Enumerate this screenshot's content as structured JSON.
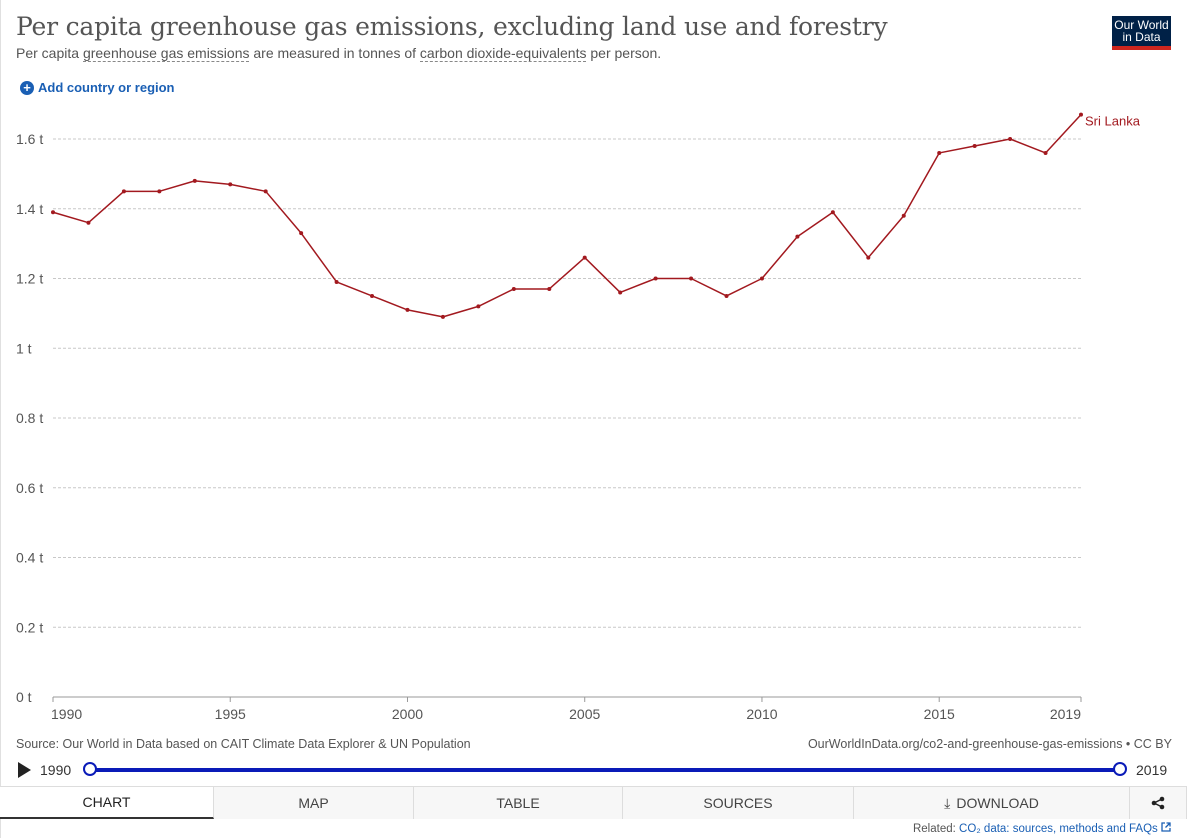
{
  "header": {
    "title": "Per capita greenhouse gas emissions, excluding land use and forestry",
    "subtitle_pre": "Per capita ",
    "subtitle_link1": "greenhouse gas emissions",
    "subtitle_mid": " are measured in tonnes of ",
    "subtitle_link2": "carbon dioxide-equivalents",
    "subtitle_post": " per person.",
    "logo_line1": "Our World",
    "logo_line2": "in Data"
  },
  "controls": {
    "add_country_label": "Add country or region"
  },
  "footer": {
    "source": "Source: Our World in Data based on CAIT Climate Data Explorer & UN Population",
    "url": "OurWorldInData.org/co2-and-greenhouse-gas-emissions • CC BY",
    "related_prefix": "Related: ",
    "related_link": "CO₂ data: sources, methods and FAQs"
  },
  "timeline": {
    "start_year": "1990",
    "end_year": "2019"
  },
  "tabs": [
    {
      "label": "Chart"
    },
    {
      "label": "Map"
    },
    {
      "label": "Table"
    },
    {
      "label": "Sources"
    },
    {
      "label": "Download"
    }
  ],
  "colors": {
    "series": "#a2191f",
    "grid": "#c8c8c8",
    "accent": "#0a1bb8"
  },
  "chart_data": {
    "type": "line",
    "title": "Per capita greenhouse gas emissions, excluding land use and forestry",
    "xlabel": "",
    "ylabel": "",
    "xlim": [
      1990,
      2019
    ],
    "ylim": [
      0,
      1.6
    ],
    "y_ticks": [
      0,
      0.2,
      0.4,
      0.6,
      0.8,
      1,
      1.2,
      1.4,
      1.6
    ],
    "y_tick_labels": [
      "0 t",
      "0.2 t",
      "0.4 t",
      "0.6 t",
      "0.8 t",
      "1 t",
      "1.2 t",
      "1.4 t",
      "1.6 t"
    ],
    "x_ticks": [
      1990,
      1995,
      2000,
      2005,
      2010,
      2015,
      2019
    ],
    "x_tick_labels": [
      "1990",
      "1995",
      "2000",
      "2005",
      "2010",
      "2015",
      "2019"
    ],
    "grid": "horizontal dashed",
    "legend": "end-of-line label",
    "x": [
      1990,
      1991,
      1992,
      1993,
      1994,
      1995,
      1996,
      1997,
      1998,
      1999,
      2000,
      2001,
      2002,
      2003,
      2004,
      2005,
      2006,
      2007,
      2008,
      2009,
      2010,
      2011,
      2012,
      2013,
      2014,
      2015,
      2016,
      2017,
      2018,
      2019
    ],
    "series": [
      {
        "name": "Sri Lanka",
        "values": [
          1.39,
          1.36,
          1.45,
          1.45,
          1.48,
          1.47,
          1.45,
          1.33,
          1.19,
          1.15,
          1.11,
          1.09,
          1.12,
          1.17,
          1.17,
          1.26,
          1.16,
          1.2,
          1.2,
          1.15,
          1.2,
          1.32,
          1.39,
          1.26,
          1.38,
          1.56,
          1.58,
          1.6,
          1.56,
          1.67
        ]
      }
    ]
  }
}
